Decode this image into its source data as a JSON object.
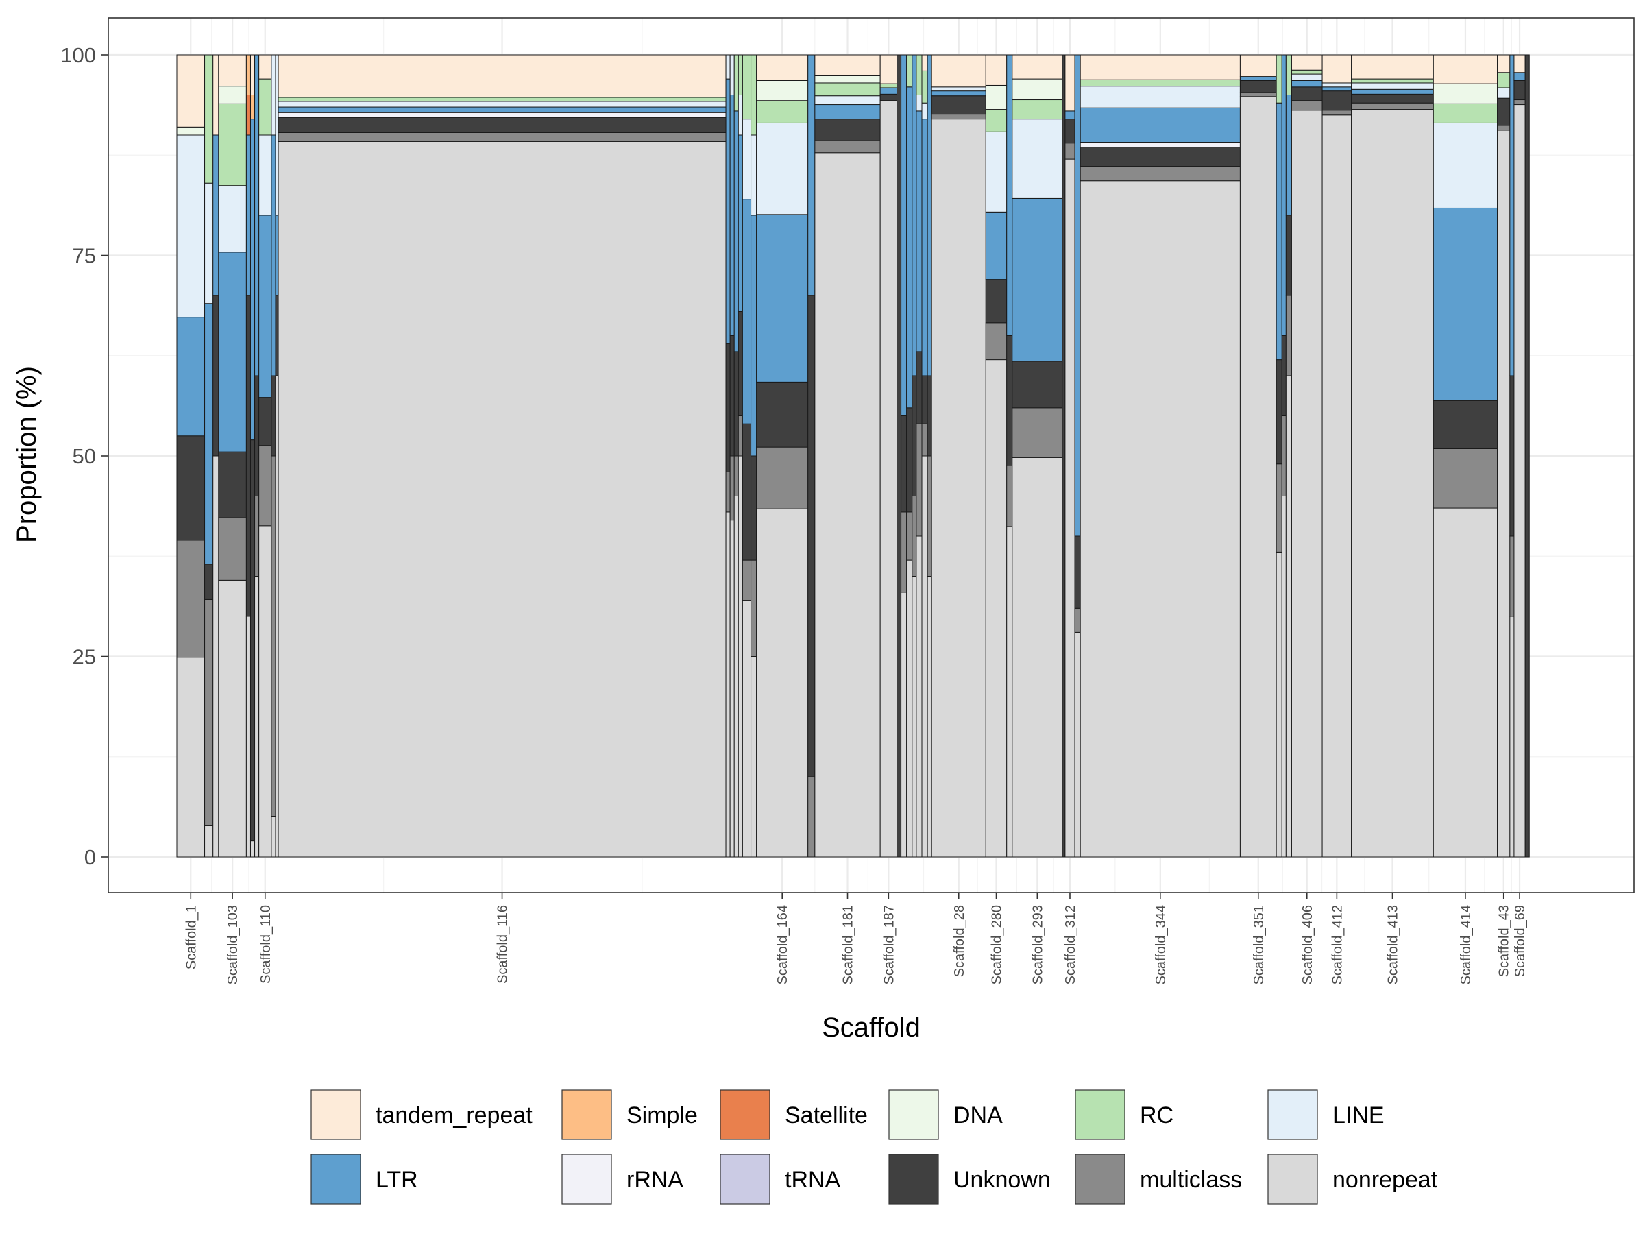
{
  "chart_data": {
    "type": "bar",
    "subtype": "mosaic-stacked-variable-width",
    "title": "",
    "xlabel": "Scaffold",
    "ylabel": "Proportion (%)",
    "ylim": [
      0,
      100
    ],
    "y_ticks": [
      0,
      25,
      50,
      75,
      100
    ],
    "grid": true,
    "theme": "bw",
    "legend_position": "bottom",
    "categories": [
      "tandem_repeat",
      "Simple",
      "Satellite",
      "DNA",
      "RC",
      "LINE",
      "LTR",
      "rRNA",
      "tRNA",
      "Unknown",
      "multiclass",
      "nonrepeat"
    ],
    "colors": {
      "tandem_repeat": "#FDEBD9",
      "Simple": "#FDBE85",
      "Satellite": "#E9804D",
      "DNA": "#EDF8E9",
      "RC": "#B7E2B1",
      "LINE": "#E3EFF9",
      "LTR": "#5E9FCF",
      "rRNA": "#F2F2F8",
      "tRNA": "#CBCBE4",
      "Unknown": "#404040",
      "multiclass": "#8A8A8A",
      "nonrepeat": "#D9D9D9"
    },
    "stack_order_bottom_to_top": [
      "nonrepeat",
      "multiclass",
      "Unknown",
      "tRNA",
      "rRNA",
      "LTR",
      "LINE",
      "RC",
      "DNA",
      "Satellite",
      "Simple",
      "tandem_repeat"
    ],
    "x_tick_labels": [
      "Scaffold_1",
      "Scaffold_103",
      "Scaffold_110",
      "Scaffold_116",
      "Scaffold_164",
      "Scaffold_181",
      "Scaffold_187",
      "Scaffold_28",
      "Scaffold_280",
      "Scaffold_293",
      "Scaffold_312",
      "Scaffold_344",
      "Scaffold_351",
      "Scaffold_406",
      "Scaffold_412",
      "Scaffold_413",
      "Scaffold_414",
      "Scaffold_43",
      "Scaffold_69"
    ],
    "x_axis_total_relative_width": 100,
    "scaffolds": [
      {
        "name": "Scaffold_1",
        "labeled": true,
        "start": 0,
        "width": 2.0,
        "values": {
          "nonrepeat": 24.9,
          "multiclass": 14.6,
          "LINE": 22.7,
          "LTR": 14.8,
          "DNA": 1.0,
          "tandem_repeat": 9.0,
          "Unknown": 13.0
        }
      },
      {
        "name": "",
        "labeled": false,
        "start": 2.0,
        "width": 0.6,
        "values": {
          "nonrepeat": 3.9,
          "multiclass": 28.2,
          "LINE": 15.0,
          "LTR": 32.5,
          "RC": 16.0,
          "Unknown": 4.4
        }
      },
      {
        "name": "",
        "labeled": false,
        "start": 2.6,
        "width": 0.4,
        "values": {
          "nonrepeat": 50.0,
          "Unknown": 20.0,
          "LTR": 20.0,
          "tandem_repeat": 10.0
        }
      },
      {
        "name": "Scaffold_103",
        "labeled": true,
        "start": 3.0,
        "width": 2.0,
        "values": {
          "nonrepeat": 34.5,
          "multiclass": 7.8,
          "DNA": 2.2,
          "LINE": 8.3,
          "LTR": 24.9,
          "RC": 10.2,
          "tandem_repeat": 3.9,
          "Unknown": 8.2
        }
      },
      {
        "name": "",
        "labeled": false,
        "start": 5.0,
        "width": 0.3,
        "values": {
          "nonrepeat": 30.0,
          "Unknown": 40.0,
          "LTR": 20.0,
          "Satellite": 5.0,
          "Simple": 5.0
        }
      },
      {
        "name": "",
        "labeled": false,
        "start": 5.3,
        "width": 0.3,
        "values": {
          "nonrepeat": 2.0,
          "Unknown": 50.0,
          "LTR": 40.0,
          "Simple": 3.0,
          "tandem_repeat": 5.0
        }
      },
      {
        "name": "",
        "labeled": false,
        "start": 5.6,
        "width": 0.3,
        "values": {
          "nonrepeat": 35.0,
          "multiclass": 10.0,
          "LTR": 40.0,
          "Unknown": 15.0
        }
      },
      {
        "name": "Scaffold_110",
        "labeled": true,
        "start": 5.9,
        "width": 0.9,
        "values": {
          "nonrepeat": 41.3,
          "multiclass": 10.0,
          "LINE": 10.0,
          "LTR": 22.7,
          "RC": 7.0,
          "tandem_repeat": 3.0,
          "Unknown": 6.0
        }
      },
      {
        "name": "",
        "labeled": false,
        "start": 6.8,
        "width": 0.3,
        "values": {
          "nonrepeat": 5.0,
          "multiclass": 45.0,
          "LTR": 30.0,
          "LINE": 10.0,
          "Unknown": 10.0
        }
      },
      {
        "name": "",
        "labeled": false,
        "start": 7.1,
        "width": 0.2,
        "values": {
          "nonrepeat": 60.0,
          "LINE": 20.0,
          "LTR": 10.0,
          "Unknown": 10.0
        }
      },
      {
        "name": "Scaffold_116",
        "labeled": true,
        "start": 7.3,
        "width": 32.2,
        "values": {
          "nonrepeat": 89.2,
          "multiclass": 1.1,
          "rRNA": 0.6,
          "LINE": 0.7,
          "LTR": 0.7,
          "RC": 0.5,
          "tandem_repeat": 5.3,
          "Unknown": 1.9
        }
      },
      {
        "name": "",
        "labeled": false,
        "start": 39.5,
        "width": 0.3,
        "values": {
          "nonrepeat": 43.0,
          "multiclass": 5.0,
          "LINE": 3.0,
          "LTR": 33.0,
          "Unknown": 16.0
        }
      },
      {
        "name": "",
        "labeled": false,
        "start": 39.8,
        "width": 0.3,
        "values": {
          "nonrepeat": 42.0,
          "multiclass": 8.0,
          "LINE": 5.0,
          "LTR": 30.0,
          "Unknown": 15.0
        }
      },
      {
        "name": "",
        "labeled": false,
        "start": 40.1,
        "width": 0.3,
        "values": {
          "nonrepeat": 45.0,
          "multiclass": 5.0,
          "LTR": 30.0,
          "RC": 7.0,
          "Unknown": 13.0
        }
      },
      {
        "name": "",
        "labeled": false,
        "start": 40.4,
        "width": 0.3,
        "values": {
          "nonrepeat": 50.0,
          "multiclass": 5.0,
          "LINE": 5.0,
          "LTR": 22.0,
          "RC": 5.0,
          "Unknown": 13.0
        }
      },
      {
        "name": "",
        "labeled": false,
        "start": 40.7,
        "width": 0.6,
        "values": {
          "nonrepeat": 32.0,
          "multiclass": 5.0,
          "LINE": 10.0,
          "LTR": 28.0,
          "RC": 8.0,
          "Unknown": 17.0
        }
      },
      {
        "name": "",
        "labeled": false,
        "start": 41.3,
        "width": 0.4,
        "values": {
          "nonrepeat": 25.0,
          "multiclass": 12.0,
          "LINE": 10.0,
          "LTR": 30.0,
          "RC": 10.0,
          "Unknown": 13.0
        }
      },
      {
        "name": "Scaffold_164",
        "labeled": true,
        "start": 41.7,
        "width": 3.7,
        "values": {
          "nonrepeat": 43.4,
          "multiclass": 7.7,
          "DNA": 2.5,
          "LINE": 11.4,
          "LTR": 20.9,
          "RC": 2.8,
          "tandem_repeat": 3.2,
          "Unknown": 8.1
        }
      },
      {
        "name": "",
        "labeled": false,
        "start": 45.4,
        "width": 0.5,
        "values": {
          "nonrepeat": 0.0,
          "Unknown": 60.0,
          "LTR": 30.0,
          "multiclass": 10.0
        }
      },
      {
        "name": "Scaffold_181",
        "labeled": true,
        "start": 45.9,
        "width": 4.7,
        "values": {
          "nonrepeat": 87.8,
          "multiclass": 1.5,
          "DNA": 0.9,
          "LINE": 1.1,
          "LTR": 1.8,
          "RC": 1.6,
          "tandem_repeat": 2.6,
          "Unknown": 2.7
        }
      },
      {
        "name": "Scaffold_187",
        "labeled": true,
        "start": 50.6,
        "width": 1.2,
        "values": {
          "nonrepeat": 94.3,
          "LTR": 0.8,
          "RC": 0.5,
          "tandem_repeat": 3.6,
          "Unknown": 0.8
        }
      },
      {
        "name": "",
        "labeled": false,
        "start": 51.8,
        "width": 0.3,
        "values": {
          "nonrepeat": 0.0,
          "Unknown": 100.0
        }
      },
      {
        "name": "",
        "labeled": false,
        "start": 52.1,
        "width": 0.4,
        "values": {
          "nonrepeat": 33.0,
          "multiclass": 10.0,
          "LTR": 45.0,
          "Unknown": 12.0
        }
      },
      {
        "name": "",
        "labeled": false,
        "start": 52.5,
        "width": 0.4,
        "values": {
          "nonrepeat": 37.0,
          "multiclass": 6.0,
          "LTR": 40.0,
          "RC": 4.0,
          "Unknown": 13.0
        }
      },
      {
        "name": "",
        "labeled": false,
        "start": 52.9,
        "width": 0.3,
        "values": {
          "nonrepeat": 35.0,
          "multiclass": 10.0,
          "LTR": 40.0,
          "Unknown": 15.0
        }
      },
      {
        "name": "",
        "labeled": false,
        "start": 53.2,
        "width": 0.4,
        "values": {
          "nonrepeat": 40.0,
          "multiclass": 14.0,
          "LINE": 2.0,
          "LTR": 30.0,
          "RC": 5.0,
          "Unknown": 9.0
        }
      },
      {
        "name": "",
        "labeled": false,
        "start": 53.6,
        "width": 0.4,
        "values": {
          "nonrepeat": 50.0,
          "multiclass": 4.0,
          "LINE": 2.0,
          "LTR": 32.0,
          "RC": 4.0,
          "tandem_repeat": 2.0,
          "Unknown": 6.0
        }
      },
      {
        "name": "",
        "labeled": false,
        "start": 54.0,
        "width": 0.3,
        "values": {
          "nonrepeat": 35.0,
          "multiclass": 15.0,
          "LTR": 40.0,
          "Unknown": 10.0
        }
      },
      {
        "name": "Scaffold_28",
        "labeled": true,
        "start": 54.3,
        "width": 3.9,
        "values": {
          "nonrepeat": 92.0,
          "multiclass": 0.6,
          "LINE": 0.5,
          "LTR": 0.6,
          "tandem_repeat": 4.0,
          "Unknown": 2.3
        }
      },
      {
        "name": "Scaffold_280",
        "labeled": true,
        "start": 58.2,
        "width": 1.5,
        "values": {
          "nonrepeat": 62.0,
          "multiclass": 4.6,
          "DNA": 3.0,
          "LINE": 10.0,
          "LTR": 8.4,
          "RC": 2.8,
          "tandem_repeat": 3.8,
          "Unknown": 5.4
        }
      },
      {
        "name": "",
        "labeled": false,
        "start": 59.7,
        "width": 0.4,
        "values": {
          "nonrepeat": 41.2,
          "multiclass": 7.6,
          "LTR": 35.0,
          "Unknown": 16.2
        }
      },
      {
        "name": "Scaffold_293",
        "labeled": true,
        "start": 60.1,
        "width": 3.6,
        "values": {
          "nonrepeat": 49.8,
          "multiclass": 6.2,
          "DNA": 2.6,
          "LINE": 9.9,
          "LTR": 20.3,
          "RC": 2.4,
          "tandem_repeat": 3.0,
          "Unknown": 5.8
        }
      },
      {
        "name": "",
        "labeled": false,
        "start": 63.7,
        "width": 0.2,
        "values": {
          "nonrepeat": 0.0,
          "Unknown": 100.0
        }
      },
      {
        "name": "Scaffold_312",
        "labeled": true,
        "start": 63.9,
        "width": 0.7,
        "values": {
          "nonrepeat": 87.0,
          "multiclass": 2.0,
          "LTR": 1.0,
          "tandem_repeat": 7.0,
          "Unknown": 3.0
        }
      },
      {
        "name": "",
        "labeled": false,
        "start": 64.6,
        "width": 0.4,
        "values": {
          "nonrepeat": 28.0,
          "multiclass": 3.0,
          "LTR": 60.0,
          "Unknown": 9.0
        }
      },
      {
        "name": "Scaffold_344",
        "labeled": true,
        "start": 65.0,
        "width": 11.5,
        "values": {
          "nonrepeat": 84.3,
          "multiclass": 1.8,
          "rRNA": 0.6,
          "LINE": 2.7,
          "LTR": 4.3,
          "RC": 0.8,
          "tandem_repeat": 3.1,
          "Unknown": 2.4
        }
      },
      {
        "name": "Scaffold_351",
        "labeled": true,
        "start": 76.5,
        "width": 2.6,
        "values": {
          "nonrepeat": 94.8,
          "multiclass": 0.5,
          "LTR": 0.5,
          "tandem_repeat": 2.7,
          "Unknown": 1.5
        }
      },
      {
        "name": "",
        "labeled": false,
        "start": 79.1,
        "width": 0.4,
        "values": {
          "nonrepeat": 38.0,
          "multiclass": 11.0,
          "LTR": 32.0,
          "RC": 6.0,
          "Unknown": 13.0
        }
      },
      {
        "name": "",
        "labeled": false,
        "start": 79.5,
        "width": 0.3,
        "values": {
          "nonrepeat": 45.0,
          "multiclass": 10.0,
          "LTR": 35.0,
          "Unknown": 10.0
        }
      },
      {
        "name": "",
        "labeled": false,
        "start": 79.8,
        "width": 0.4,
        "values": {
          "nonrepeat": 60.0,
          "multiclass": 10.0,
          "LTR": 15.0,
          "RC": 5.0,
          "Unknown": 10.0
        }
      },
      {
        "name": "Scaffold_406",
        "labeled": true,
        "start": 80.2,
        "width": 2.2,
        "values": {
          "nonrepeat": 93.1,
          "multiclass": 1.2,
          "LINE": 0.8,
          "LTR": 0.8,
          "RC": 0.5,
          "tandem_repeat": 1.9,
          "Unknown": 1.7
        }
      },
      {
        "name": "Scaffold_412",
        "labeled": true,
        "start": 82.4,
        "width": 2.1,
        "values": {
          "nonrepeat": 92.5,
          "multiclass": 0.6,
          "LINE": 0.5,
          "LTR": 0.5,
          "tandem_repeat": 3.5,
          "Unknown": 2.4
        }
      },
      {
        "name": "Scaffold_413",
        "labeled": true,
        "start": 84.5,
        "width": 5.9,
        "values": {
          "nonrepeat": 93.2,
          "multiclass": 0.8,
          "LINE": 0.8,
          "LTR": 0.6,
          "RC": 0.5,
          "tandem_repeat": 3.0,
          "Unknown": 1.1
        }
      },
      {
        "name": "Scaffold_414",
        "labeled": true,
        "start": 90.4,
        "width": 4.6,
        "values": {
          "nonrepeat": 43.5,
          "multiclass": 7.4,
          "DNA": 2.5,
          "LINE": 10.6,
          "LTR": 24.0,
          "RC": 2.4,
          "tandem_repeat": 3.6,
          "Unknown": 6.0
        }
      },
      {
        "name": "Scaffold_43",
        "labeled": true,
        "start": 95.0,
        "width": 0.9,
        "values": {
          "nonrepeat": 90.6,
          "multiclass": 0.6,
          "LINE": 1.3,
          "RC": 1.9,
          "tandem_repeat": 2.2,
          "Unknown": 3.4
        }
      },
      {
        "name": "",
        "labeled": false,
        "start": 95.9,
        "width": 0.3,
        "values": {
          "nonrepeat": 30.0,
          "multiclass": 10.0,
          "LTR": 40.0,
          "Unknown": 20.0
        }
      },
      {
        "name": "Scaffold_69",
        "labeled": true,
        "start": 96.2,
        "width": 0.8,
        "values": {
          "nonrepeat": 93.8,
          "multiclass": 0.6,
          "LTR": 1.0,
          "tandem_repeat": 2.2,
          "Unknown": 2.4
        }
      },
      {
        "name": "",
        "labeled": false,
        "start": 97.0,
        "width": 0.3,
        "values": {
          "nonrepeat": 0.0,
          "Unknown": 100.0
        }
      }
    ],
    "legend_rows": [
      [
        "tandem_repeat",
        "Simple",
        "Satellite",
        "DNA",
        "RC",
        "LINE"
      ],
      [
        "LTR",
        "rRNA",
        "tRNA",
        "Unknown",
        "multiclass",
        "nonrepeat"
      ]
    ]
  }
}
